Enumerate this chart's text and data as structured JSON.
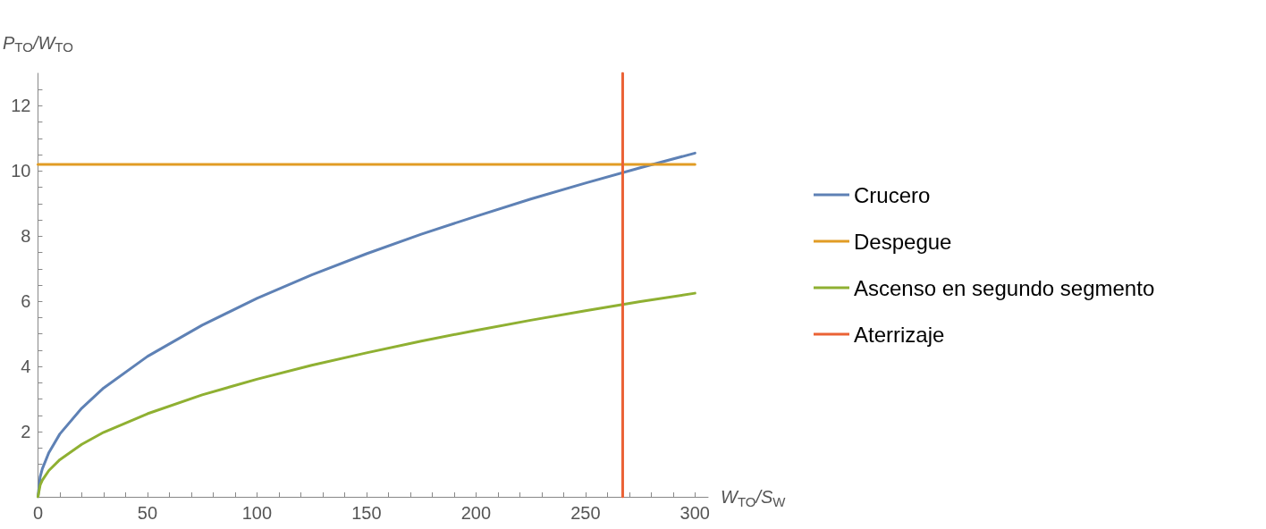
{
  "chart_data": {
    "type": "line",
    "xlabel": "W$_{TO}$/S$_{W}$",
    "ylabel": "P$_{TO}$/W$_{TO}$",
    "x": [
      0,
      1,
      2,
      5,
      10,
      20,
      30,
      50,
      75,
      100,
      125,
      150,
      175,
      200,
      225,
      250,
      275,
      300
    ],
    "series": [
      {
        "name": "Crucero",
        "color": "#5e81b5",
        "values": [
          0,
          0.61,
          0.86,
          1.36,
          1.93,
          2.72,
          3.34,
          4.31,
          5.27,
          6.09,
          6.81,
          7.46,
          8.06,
          8.61,
          9.14,
          9.63,
          10.1,
          10.55
        ]
      },
      {
        "name": "Despegue",
        "color": "#e19c24",
        "x": [
          0,
          300
        ],
        "values": [
          10.2,
          10.2
        ]
      },
      {
        "name": "Ascenso en segundo segmento",
        "color": "#8fb032",
        "values": [
          0,
          0.36,
          0.51,
          0.81,
          1.14,
          1.61,
          1.98,
          2.55,
          3.13,
          3.61,
          4.04,
          4.42,
          4.78,
          5.11,
          5.42,
          5.71,
          5.99,
          6.25
        ]
      },
      {
        "name": "Aterrizaje",
        "color": "#eb6235",
        "x": [
          267,
          267
        ],
        "values": [
          0,
          13
        ]
      }
    ],
    "xlim": [
      0,
      306
    ],
    "ylim": [
      0,
      13
    ],
    "xticks": [
      0,
      {
        "value": 10,
        "label": null
      },
      {
        "value": 20,
        "label": null
      },
      {
        "value": 30,
        "label": null
      },
      {
        "value": 40,
        "label": null
      },
      50,
      {
        "value": 60,
        "label": null
      },
      {
        "value": 70,
        "label": null
      },
      {
        "value": 80,
        "label": null
      },
      {
        "value": 90,
        "label": null
      },
      100,
      {
        "value": 110,
        "label": null
      },
      {
        "value": 120,
        "label": null
      },
      {
        "value": 130,
        "label": null
      },
      {
        "value": 140,
        "label": null
      },
      150,
      {
        "value": 160,
        "label": null
      },
      {
        "value": 170,
        "label": null
      },
      {
        "value": 180,
        "label": null
      },
      {
        "value": 190,
        "label": null
      },
      200,
      {
        "value": 210,
        "label": null
      },
      {
        "value": 220,
        "label": null
      },
      {
        "value": 230,
        "label": null
      },
      {
        "value": 240,
        "label": null
      },
      250,
      {
        "value": 260,
        "label": null
      },
      {
        "value": 270,
        "label": null
      },
      {
        "value": 280,
        "label": null
      },
      {
        "value": 290,
        "label": null
      },
      300
    ],
    "yticks": [
      {
        "value": 0.5,
        "label": null
      },
      {
        "value": 1,
        "label": null
      },
      {
        "value": 1.5,
        "label": null
      },
      2,
      {
        "value": 2.5,
        "label": null
      },
      {
        "value": 3,
        "label": null
      },
      {
        "value": 3.5,
        "label": null
      },
      4,
      {
        "value": 4.5,
        "label": null
      },
      {
        "value": 5,
        "label": null
      },
      {
        "value": 5.5,
        "label": null
      },
      6,
      {
        "value": 6.5,
        "label": null
      },
      {
        "value": 7,
        "label": null
      },
      {
        "value": 7.5,
        "label": null
      },
      8,
      {
        "value": 8.5,
        "label": null
      },
      {
        "value": 9,
        "label": null
      },
      {
        "value": 9.5,
        "label": null
      },
      10,
      {
        "value": 10.5,
        "label": null
      },
      {
        "value": 11,
        "label": null
      },
      {
        "value": 11.5,
        "label": null
      },
      12,
      {
        "value": 12.5,
        "label": null
      }
    ],
    "grid": false,
    "legend": "right",
    "marker": "none",
    "line_style": "solid"
  }
}
